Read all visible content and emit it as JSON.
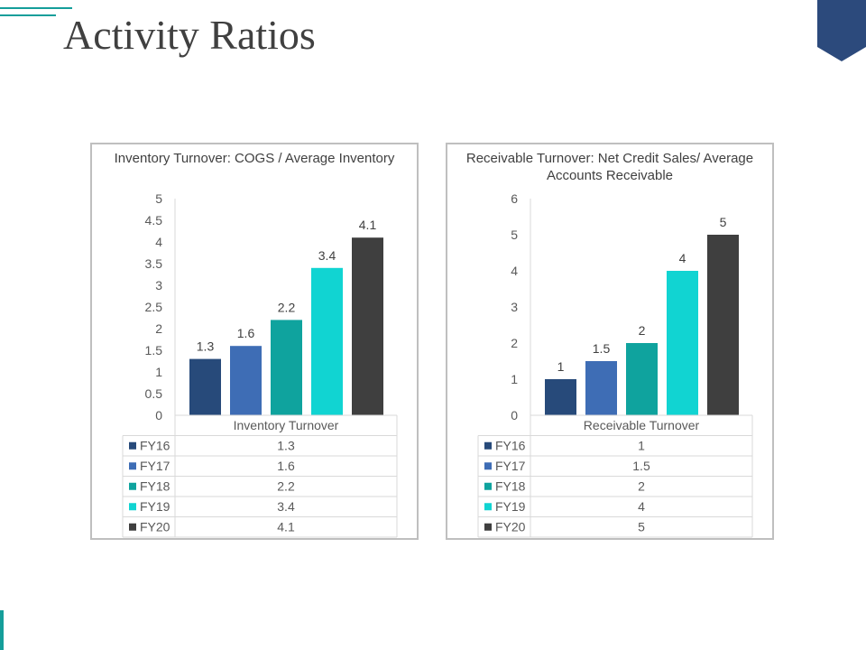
{
  "slide": {
    "title": "Activity Ratios"
  },
  "colors": {
    "accent_teal": "#159e9a",
    "corner_navy": "#2c4a7c",
    "series": [
      "#274a7a",
      "#3e6db5",
      "#0fa39e",
      "#11d4d2",
      "#3f3f3f"
    ]
  },
  "chart_data": [
    {
      "type": "bar",
      "title": "Inventory Turnover: COGS / Average Inventory",
      "categories": [
        "Inventory Turnover"
      ],
      "series": [
        {
          "name": "FY16",
          "values": [
            1.3
          ],
          "label": "1.3"
        },
        {
          "name": "FY17",
          "values": [
            1.6
          ],
          "label": "1.6"
        },
        {
          "name": "FY18",
          "values": [
            2.2
          ],
          "label": "2.2"
        },
        {
          "name": "FY19",
          "values": [
            3.4
          ],
          "label": "3.4"
        },
        {
          "name": "FY20",
          "values": [
            4.1
          ],
          "label": "4.1"
        }
      ],
      "ylim": [
        0,
        5
      ],
      "yticks": [
        "0",
        "0.5",
        "1",
        "1.5",
        "2",
        "2.5",
        "3",
        "3.5",
        "4",
        "4.5",
        "5"
      ],
      "grid": false,
      "data_table": true
    },
    {
      "type": "bar",
      "title": "Receivable Turnover: Net Credit Sales/ Average Accounts Receivable",
      "categories": [
        "Receivable Turnover"
      ],
      "series": [
        {
          "name": "FY16",
          "values": [
            1
          ],
          "label": "1"
        },
        {
          "name": "FY17",
          "values": [
            1.5
          ],
          "label": "1.5"
        },
        {
          "name": "FY18",
          "values": [
            2
          ],
          "label": "2"
        },
        {
          "name": "FY19",
          "values": [
            4
          ],
          "label": "4"
        },
        {
          "name": "FY20",
          "values": [
            5
          ],
          "label": "5"
        }
      ],
      "ylim": [
        0,
        6
      ],
      "yticks": [
        "0",
        "1",
        "2",
        "3",
        "4",
        "5",
        "6"
      ],
      "grid": false,
      "data_table": true
    }
  ]
}
